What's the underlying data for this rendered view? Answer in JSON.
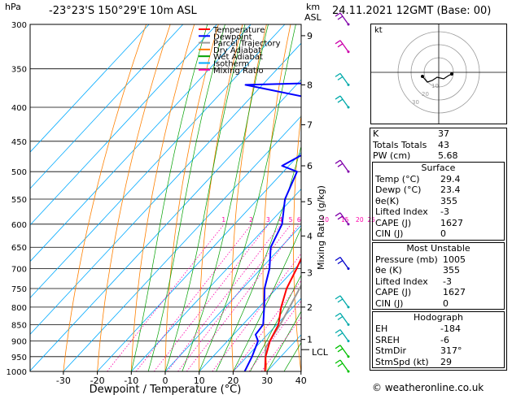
{
  "header": {
    "hpa_unit": "hPa",
    "location": "-23°23'S  150°29'E  10m  ASL",
    "km_unit": "km",
    "asl_unit": "ASL",
    "datetime": "24.11.2021  12GMT  (Base: 00)"
  },
  "chart_data": {
    "type": "skew-t",
    "xlabel": "Dewpoint / Temperature (°C)",
    "right_axis_label": "Mixing Ratio (g/kg)",
    "pressure_levels": [
      300,
      350,
      400,
      450,
      500,
      550,
      600,
      650,
      700,
      750,
      800,
      850,
      900,
      950,
      1000
    ],
    "x_ticks": [
      -30,
      -20,
      -10,
      0,
      10,
      20,
      30,
      40
    ],
    "x_tick_labels": [
      "-30",
      "-20",
      "-10",
      "0",
      "10",
      "20",
      "30",
      "40"
    ],
    "km_ticks": [
      {
        "label": "9",
        "p": 312
      },
      {
        "label": "8",
        "p": 370
      },
      {
        "label": "7",
        "p": 425
      },
      {
        "label": "6",
        "p": 490
      },
      {
        "label": "5",
        "p": 555
      },
      {
        "label": "4",
        "p": 625
      },
      {
        "label": "3",
        "p": 710
      },
      {
        "label": "2",
        "p": 800
      },
      {
        "label": "1",
        "p": 895
      }
    ],
    "lcl_label": "LCL",
    "mixing_ratio_labels": [
      "1",
      "2",
      "3",
      "4",
      "5",
      "6",
      "10",
      "15",
      "20",
      "25"
    ],
    "legend": [
      {
        "name": "Temperature",
        "color": "#ff0000"
      },
      {
        "name": "Dewpoint",
        "color": "#0000ff"
      },
      {
        "name": "Parcel Trajectory",
        "color": "#999999"
      },
      {
        "name": "Dry Adiabat",
        "color": "#ff8000"
      },
      {
        "name": "Wet Adiabat",
        "color": "#00a000"
      },
      {
        "name": "Isotherm",
        "color": "#00aaff"
      },
      {
        "name": "Mixing Ratio",
        "color": "#ff00aa"
      }
    ],
    "temperature": [
      {
        "p": 1000,
        "t": 29.4
      },
      {
        "p": 950,
        "t": 25.5
      },
      {
        "p": 900,
        "t": 22.5
      },
      {
        "p": 850,
        "t": 20.5
      },
      {
        "p": 800,
        "t": 16.5
      },
      {
        "p": 750,
        "t": 13.0
      },
      {
        "p": 700,
        "t": 10.5
      },
      {
        "p": 650,
        "t": 7.5
      },
      {
        "p": 600,
        "t": 4.5
      },
      {
        "p": 550,
        "t": 0.5
      },
      {
        "p": 500,
        "t": -4.5
      },
      {
        "p": 450,
        "t": -9.5
      },
      {
        "p": 400,
        "t": -15.5
      },
      {
        "p": 350,
        "t": -23.0
      },
      {
        "p": 300,
        "t": -31.0
      }
    ],
    "dewpoint": [
      {
        "p": 1000,
        "t": 23.4
      },
      {
        "p": 950,
        "t": 21.5
      },
      {
        "p": 900,
        "t": 19.0
      },
      {
        "p": 880,
        "t": 16.5
      },
      {
        "p": 850,
        "t": 16.0
      },
      {
        "p": 800,
        "t": 11.5
      },
      {
        "p": 750,
        "t": 6.5
      },
      {
        "p": 700,
        "t": 2.5
      },
      {
        "p": 650,
        "t": -3.0
      },
      {
        "p": 600,
        "t": -6.0
      },
      {
        "p": 550,
        "t": -12.0
      },
      {
        "p": 500,
        "t": -16.0
      },
      {
        "p": 490,
        "t": -22.0
      },
      {
        "p": 465,
        "t": -18.0
      },
      {
        "p": 440,
        "t": -24.0
      },
      {
        "p": 420,
        "t": -28.0
      },
      {
        "p": 395,
        "t": -31.0
      },
      {
        "p": 390,
        "t": -29.0
      },
      {
        "p": 370,
        "t": -55.0
      },
      {
        "p": 368,
        "t": -38.0
      },
      {
        "p": 350,
        "t": -40.0
      },
      {
        "p": 335,
        "t": -42.0
      },
      {
        "p": 315,
        "t": -50.0
      },
      {
        "p": 300,
        "t": -52.0
      }
    ],
    "parcel": [
      {
        "p": 1000,
        "t": 29.4
      },
      {
        "p": 920,
        "t": 23.0
      },
      {
        "p": 850,
        "t": 21.0
      },
      {
        "p": 800,
        "t": 19.0
      },
      {
        "p": 700,
        "t": 14.5
      },
      {
        "p": 600,
        "t": 8.5
      },
      {
        "p": 500,
        "t": 1.0
      },
      {
        "p": 400,
        "t": -9.0
      },
      {
        "p": 300,
        "t": -24.0
      }
    ],
    "wind_barbs": [
      {
        "p": 1000,
        "color": "#00c000"
      },
      {
        "p": 950,
        "color": "#00c000"
      },
      {
        "p": 900,
        "color": "#00aaaa"
      },
      {
        "p": 850,
        "color": "#00aaaa"
      },
      {
        "p": 800,
        "color": "#00aaaa"
      },
      {
        "p": 700,
        "color": "#0000cc"
      },
      {
        "p": 600,
        "color": "#8000aa"
      },
      {
        "p": 500,
        "color": "#8000aa"
      },
      {
        "p": 400,
        "color": "#00aaaa"
      },
      {
        "p": 370,
        "color": "#00aaaa"
      },
      {
        "p": 330,
        "color": "#cc00aa"
      },
      {
        "p": 300,
        "color": "#8000aa"
      }
    ]
  },
  "hodograph": {
    "label": "kt",
    "ring_labels": [
      "10",
      "20",
      "30"
    ]
  },
  "indices": {
    "rows": [
      {
        "label": "K",
        "value": "37"
      },
      {
        "label": "Totals Totals",
        "value": "43"
      },
      {
        "label": "PW (cm)",
        "value": "5.68"
      }
    ]
  },
  "surface": {
    "title": "Surface",
    "rows": [
      {
        "label": "Temp (°C)",
        "value": "29.4"
      },
      {
        "label": "Dewp (°C)",
        "value": "23.4"
      },
      {
        "label": "θe(K)",
        "value": "355"
      },
      {
        "label": "Lifted Index",
        "value": "-3"
      },
      {
        "label": "CAPE (J)",
        "value": "1627"
      },
      {
        "label": "CIN (J)",
        "value": "0"
      }
    ]
  },
  "most_unstable": {
    "title": "Most Unstable",
    "rows": [
      {
        "label": "Pressure (mb)",
        "value": "1005"
      },
      {
        "label": "θe (K)",
        "value": "355"
      },
      {
        "label": "Lifted Index",
        "value": "-3"
      },
      {
        "label": "CAPE (J)",
        "value": "1627"
      },
      {
        "label": "CIN (J)",
        "value": "0"
      }
    ]
  },
  "hodograph_params": {
    "title": "Hodograph",
    "rows": [
      {
        "label": "EH",
        "value": "-184"
      },
      {
        "label": "SREH",
        "value": "-6"
      },
      {
        "label": "StmDir",
        "value": "317°"
      },
      {
        "label": "StmSpd (kt)",
        "value": "29"
      }
    ]
  },
  "footer": {
    "copyright": "© weatheronline.co.uk"
  }
}
